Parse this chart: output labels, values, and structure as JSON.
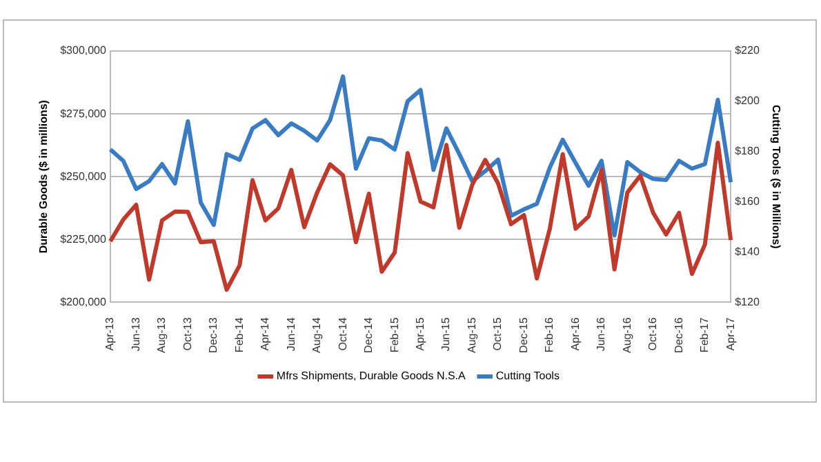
{
  "chart_data": {
    "type": "line",
    "ylabel": "Durable Goods ($ in millions)",
    "y2label": "Cutting Tools ($ in Millions)",
    "categories": [
      "Apr-13",
      null,
      "Jun-13",
      null,
      "Aug-13",
      null,
      "Oct-13",
      null,
      "Dec-13",
      null,
      "Feb-14",
      null,
      "Apr-14",
      null,
      "Jun-14",
      null,
      "Aug-14",
      null,
      "Oct-14",
      null,
      "Dec-14",
      null,
      "Feb-15",
      null,
      "Apr-15",
      null,
      "Jun-15",
      null,
      "Aug-15",
      null,
      "Oct-15",
      null,
      "Dec-15",
      null,
      "Feb-16",
      null,
      "Apr-16",
      null,
      "Jun-16",
      null,
      "Aug-16",
      null,
      "Oct-16",
      null,
      "Dec-16",
      null,
      "Feb-17",
      null,
      "Apr-17"
    ],
    "series": [
      {
        "name": "Mfrs Shipments, Durable Goods N.S.A",
        "color": "#c0392b",
        "values": [
          224300,
          232900,
          238800,
          209000,
          232600,
          236100,
          236000,
          223900,
          224300,
          205000,
          214700,
          248600,
          232600,
          237400,
          252700,
          229900,
          243700,
          254900,
          250500,
          223900,
          243200,
          212200,
          219800,
          259400,
          240100,
          237800,
          262600,
          229700,
          246800,
          256700,
          247300,
          231100,
          234700,
          209500,
          229300,
          259000,
          229300,
          234200,
          252700,
          213100,
          243700,
          250400,
          235600,
          227000,
          235600,
          211300,
          223000,
          263500,
          224800
        ]
      },
      {
        "name": "Cutting Tools",
        "color": "#3a7cc3",
        "axis": "y2",
        "values": [
          180.8,
          176.3,
          165.1,
          168.2,
          175,
          167.3,
          192,
          159.6,
          150.8,
          179,
          176.7,
          189.2,
          192.5,
          186.5,
          191.2,
          188.3,
          184.4,
          192.5,
          209.9,
          173.2,
          185.3,
          184.4,
          180.8,
          200,
          204.5,
          172.7,
          189.2,
          179,
          168.2,
          172.2,
          176.8,
          154.4,
          157,
          159.2,
          173.6,
          184.7,
          175.4,
          166.4,
          176.3,
          146.6,
          175.8,
          171.8,
          169.1,
          168.7,
          176.3,
          173.2,
          175,
          200.6,
          167.8
        ]
      }
    ],
    "ylim": [
      200000,
      300000
    ],
    "yticks": [
      {
        "value": 200000,
        "label": "$200,000"
      },
      {
        "value": 225000,
        "label": "$225,000"
      },
      {
        "value": 250000,
        "label": "$250,000"
      },
      {
        "value": 275000,
        "label": "$275,000"
      },
      {
        "value": 300000,
        "label": "$300,000"
      }
    ],
    "y2lim": [
      120,
      220
    ],
    "y2ticks": [
      {
        "value": 120,
        "label": "$120"
      },
      {
        "value": 140,
        "label": "$140"
      },
      {
        "value": 160,
        "label": "$160"
      },
      {
        "value": 180,
        "label": "$180"
      },
      {
        "value": 200,
        "label": "$200"
      },
      {
        "value": 220,
        "label": "$220"
      }
    ],
    "grid": "y",
    "legend": "bottom",
    "marker": "none",
    "line_style": "solid"
  }
}
